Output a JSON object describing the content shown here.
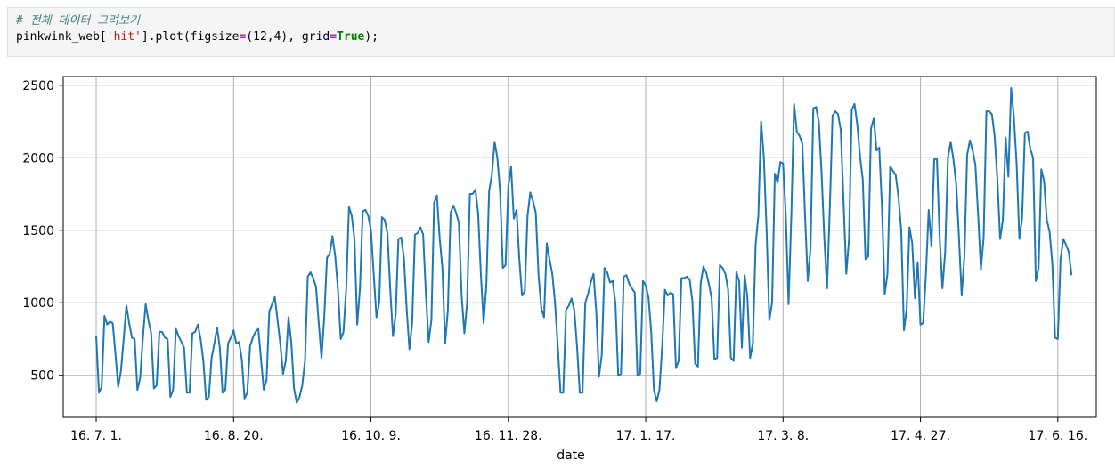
{
  "code_cell": {
    "comment": "# 전체 데이터 그려보기",
    "line2_parts": {
      "obj": "pinkwink_web[",
      "key": "'hit'",
      "mid": "].plot(figsize",
      "eq1": "=",
      "args": "(12,4), grid",
      "eq2": "=",
      "kw": "True",
      "end": ");"
    }
  },
  "chart_data": {
    "type": "line",
    "xlabel": "date",
    "ylabel": "",
    "title": "",
    "grid": true,
    "ylim": [
      210,
      2560
    ],
    "xlim": [
      -12,
      364
    ],
    "x_ticks": [
      {
        "day": 0,
        "label": "16. 7. 1."
      },
      {
        "day": 50,
        "label": "16. 8. 20."
      },
      {
        "day": 100,
        "label": "16. 10. 9."
      },
      {
        "day": 150,
        "label": "16. 11. 28."
      },
      {
        "day": 200,
        "label": "17. 1. 17."
      },
      {
        "day": 250,
        "label": "17. 3. 8."
      },
      {
        "day": 300,
        "label": "17. 4. 27."
      },
      {
        "day": 350,
        "label": "17. 6. 16."
      }
    ],
    "y_ticks": [
      500,
      1000,
      1500,
      2000,
      2500
    ],
    "series": [
      {
        "color": "#1f77b4",
        "values": [
          770,
          380,
          420,
          910,
          850,
          870,
          860,
          650,
          420,
          530,
          750,
          980,
          860,
          760,
          750,
          400,
          480,
          760,
          990,
          880,
          790,
          410,
          430,
          800,
          800,
          760,
          750,
          350,
          400,
          820,
          770,
          730,
          690,
          380,
          380,
          790,
          800,
          850,
          750,
          600,
          330,
          350,
          620,
          720,
          830,
          690,
          380,
          400,
          720,
          760,
          810,
          720,
          730,
          610,
          340,
          380,
          700,
          760,
          800,
          820,
          610,
          400,
          470,
          940,
          990,
          1040,
          880,
          720,
          510,
          600,
          900,
          730,
          410,
          310,
          350,
          430,
          600,
          1180,
          1210,
          1170,
          1110,
          860,
          620,
          900,
          1310,
          1340,
          1460,
          1320,
          1090,
          750,
          800,
          1100,
          1660,
          1600,
          1440,
          850,
          1100,
          1630,
          1640,
          1600,
          1500,
          1200,
          900,
          1000,
          1590,
          1570,
          1480,
          1100,
          770,
          920,
          1440,
          1450,
          1310,
          960,
          680,
          860,
          1470,
          1480,
          1520,
          1470,
          1060,
          730,
          880,
          1690,
          1740,
          1450,
          1240,
          720,
          950,
          1620,
          1670,
          1620,
          1550,
          1050,
          790,
          1000,
          1750,
          1750,
          1780,
          1620,
          1200,
          860,
          1120,
          1770,
          1880,
          2110,
          2000,
          1770,
          1240,
          1260,
          1800,
          1940,
          1580,
          1640,
          1300,
          1050,
          1080,
          1600,
          1760,
          1700,
          1620,
          1190,
          960,
          900,
          1410,
          1300,
          1200,
          1000,
          700,
          380,
          380,
          950,
          980,
          1030,
          950,
          700,
          380,
          380,
          1000,
          1060,
          1140,
          1200,
          940,
          490,
          640,
          1240,
          1210,
          1140,
          1150,
          990,
          500,
          510,
          1180,
          1190,
          1130,
          1100,
          1070,
          500,
          510,
          1150,
          1120,
          1040,
          800,
          400,
          320,
          400,
          700,
          1090,
          1050,
          1070,
          1060,
          550,
          600,
          1170,
          1170,
          1180,
          1160,
          1010,
          580,
          560,
          1130,
          1250,
          1210,
          1130,
          1030,
          610,
          620,
          1260,
          1240,
          1200,
          1090,
          620,
          600,
          1210,
          1150,
          690,
          1190,
          1040,
          620,
          720,
          1400,
          1600,
          2250,
          2000,
          1500,
          880,
          1000,
          1890,
          1830,
          1970,
          1960,
          1600,
          990,
          1600,
          2370,
          2180,
          2150,
          2100,
          1600,
          1150,
          1380,
          2340,
          2350,
          2250,
          1900,
          1450,
          1100,
          1640,
          2290,
          2320,
          2300,
          2190,
          1700,
          1200,
          1440,
          2330,
          2370,
          2230,
          2010,
          1850,
          1300,
          1320,
          2200,
          2270,
          2050,
          2070,
          1660,
          1060,
          1200,
          1940,
          1910,
          1880,
          1730,
          1500,
          810,
          960,
          1520,
          1410,
          1030,
          1280,
          850,
          860,
          1200,
          1640,
          1390,
          1990,
          1990,
          1450,
          1100,
          1350,
          2000,
          2110,
          1990,
          1820,
          1460,
          1050,
          1320,
          2020,
          2120,
          2050,
          1950,
          1600,
          1230,
          1450,
          2320,
          2320,
          2300,
          2150,
          1850,
          1440,
          1570,
          2140,
          1870,
          2480,
          2280,
          1960,
          1440,
          1580,
          2170,
          2180,
          2060,
          2000,
          1150,
          1240,
          1920,
          1840,
          1570,
          1490,
          1270,
          760,
          750,
          1300,
          1440,
          1400,
          1350,
          1190
        ]
      }
    ]
  }
}
